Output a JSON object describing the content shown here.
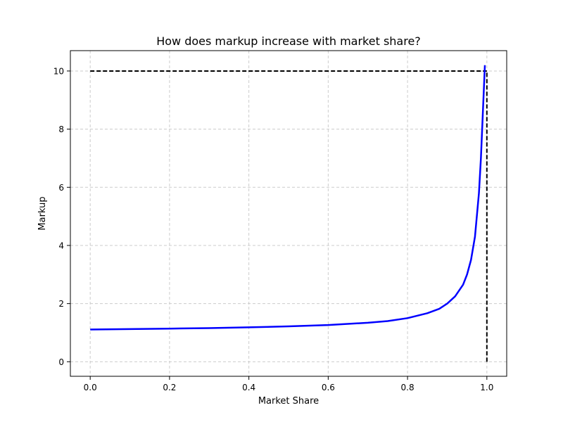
{
  "chart_data": {
    "type": "line",
    "title": "How does markup increase with market share?",
    "xlabel": "Market Share",
    "ylabel": "Markup",
    "xlim": [
      -0.05,
      1.05
    ],
    "ylim": [
      -0.5,
      10.7
    ],
    "x_ticks": [
      0.0,
      0.2,
      0.4,
      0.6,
      0.8,
      1.0
    ],
    "x_tick_labels": [
      "0.0",
      "0.2",
      "0.4",
      "0.6",
      "0.8",
      "1.0"
    ],
    "y_ticks": [
      0,
      2,
      4,
      6,
      8,
      10
    ],
    "y_tick_labels": [
      "0",
      "2",
      "4",
      "6",
      "8",
      "10"
    ],
    "grid": true,
    "series": [
      {
        "style": "solid",
        "color": "#0000ff",
        "points": [
          [
            0.0,
            1.11
          ],
          [
            0.1,
            1.123
          ],
          [
            0.2,
            1.139
          ],
          [
            0.3,
            1.158
          ],
          [
            0.4,
            1.183
          ],
          [
            0.5,
            1.216
          ],
          [
            0.6,
            1.264
          ],
          [
            0.7,
            1.342
          ],
          [
            0.75,
            1.4
          ],
          [
            0.8,
            1.5
          ],
          [
            0.85,
            1.67
          ],
          [
            0.88,
            1.82
          ],
          [
            0.9,
            2.0
          ],
          [
            0.92,
            2.25
          ],
          [
            0.94,
            2.65
          ],
          [
            0.95,
            3.0
          ],
          [
            0.96,
            3.5
          ],
          [
            0.97,
            4.3
          ],
          [
            0.98,
            5.8
          ],
          [
            0.985,
            7.0
          ],
          [
            0.99,
            8.6
          ],
          [
            0.995,
            10.2
          ]
        ]
      }
    ],
    "reference_lines": [
      {
        "style": "dashed",
        "color": "#000000",
        "points": [
          [
            0.0,
            10.0
          ],
          [
            1.0,
            10.0
          ]
        ]
      },
      {
        "style": "dashed",
        "color": "#000000",
        "points": [
          [
            1.0,
            0.0
          ],
          [
            1.0,
            10.0
          ]
        ]
      }
    ]
  }
}
